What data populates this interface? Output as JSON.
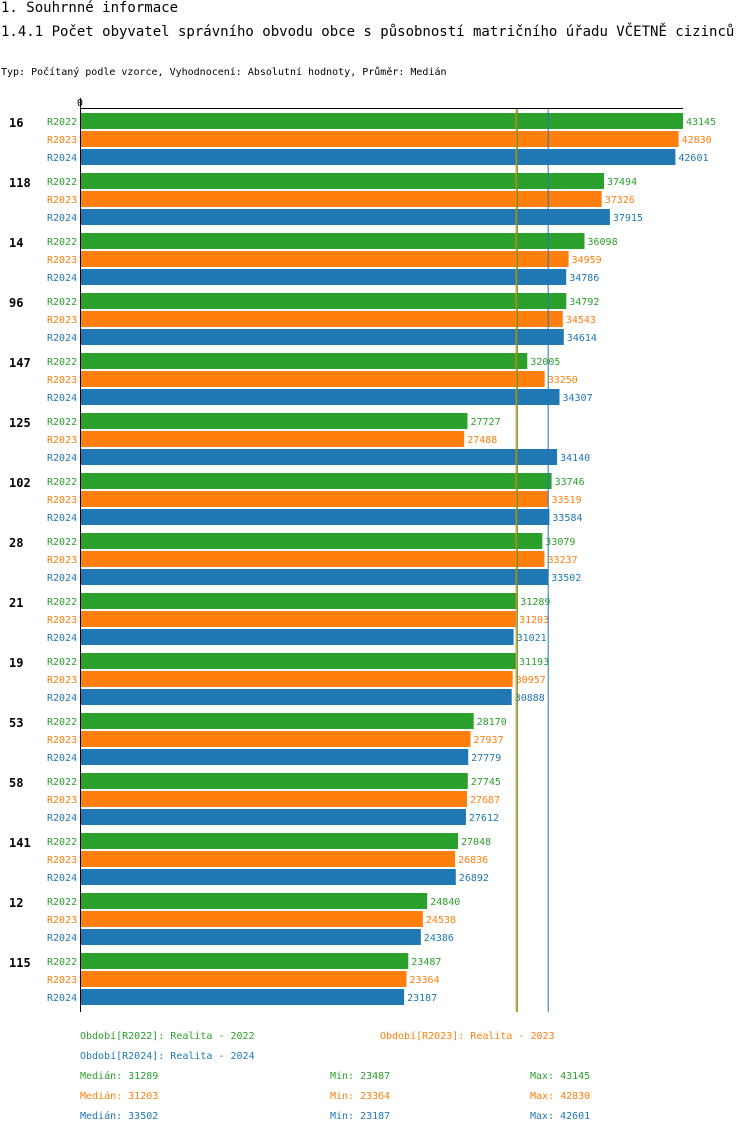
{
  "heading": "1. Souhrnné informace",
  "title": "1.4.1 Počet obyvatel správního obvodu obce s působností matričního úřadu VČETNĚ cizinců",
  "subtitle": "Typ: Počítaný podle vzorce, Vyhodnocení: Absolutní hodnoty, Průměr: Medián",
  "colors": {
    "R2022": "#2ca02c",
    "R2023": "#ff7f0e",
    "R2024": "#1f77b4"
  },
  "chart_data": {
    "type": "bar",
    "orientation": "horizontal",
    "axis_zero_label": "0",
    "xlim": [
      0,
      43145
    ],
    "categories": [
      "16",
      "118",
      "14",
      "96",
      "147",
      "125",
      "102",
      "28",
      "21",
      "19",
      "53",
      "58",
      "141",
      "12",
      "115"
    ],
    "series": [
      {
        "name": "R2022",
        "values": [
          43145,
          37494,
          36098,
          34792,
          32005,
          27727,
          33746,
          33079,
          31289,
          31193,
          28170,
          27745,
          27048,
          24840,
          23487
        ]
      },
      {
        "name": "R2023",
        "values": [
          42830,
          37326,
          34959,
          34543,
          33250,
          27488,
          33519,
          33237,
          31203,
          30957,
          27937,
          27687,
          26836,
          24538,
          23364
        ]
      },
      {
        "name": "R2024",
        "values": [
          42601,
          37915,
          34786,
          34614,
          34307,
          34140,
          33584,
          33502,
          31021,
          30888,
          27779,
          27612,
          26892,
          24386,
          23187
        ]
      }
    ],
    "reference_lines": [
      {
        "series": "R2022",
        "label": "Medián",
        "value": 31289
      },
      {
        "series": "R2023",
        "label": "Medián",
        "value": 31203
      },
      {
        "series": "R2024",
        "label": "Medián",
        "value": 33502
      }
    ]
  },
  "legend": {
    "periods": [
      {
        "text": "Období[R2022]: Realita - 2022"
      },
      {
        "text": "Období[R2023]: Realita - 2023"
      },
      {
        "text": "Období[R2024]: Realita - 2024"
      }
    ],
    "stats": [
      {
        "median": "Medián: 31289",
        "min": "Min: 23487",
        "max": "Max: 43145"
      },
      {
        "median": "Medián: 31203",
        "min": "Min: 23364",
        "max": "Max: 42830"
      },
      {
        "median": "Medián: 33502",
        "min": "Min: 23187",
        "max": "Max: 42601"
      }
    ]
  }
}
